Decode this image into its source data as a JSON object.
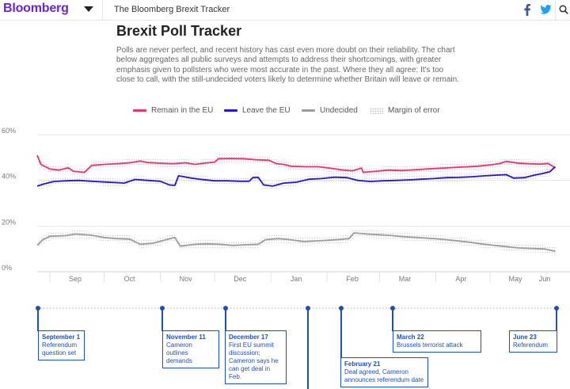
{
  "header": {
    "logo": "Bloomberg",
    "section": "The Bloomberg Brexit Tracker",
    "icons": [
      "facebook-icon",
      "twitter-icon",
      "search-icon"
    ]
  },
  "article": {
    "title": "Brexit Poll Tracker",
    "description": "Polls are never perfect, and recent history has cast even more doubt on their reliability. The chart below aggregates all public surveys and attempts to address their shortcomings, with greater emphasis given to pollsters who were most accurate in the past. Where they all agree: It's too close to call, with the still-undecided voters likely to determine whether Britain will leave or remain."
  },
  "legend": [
    {
      "label": "Remain in the EU",
      "color": "#e8336e"
    },
    {
      "label": "Leave the EU",
      "color": "#2a14c8"
    },
    {
      "label": "Undecided",
      "color": "#9b9b9b"
    },
    {
      "label": "Margin of error",
      "color": "#c8c8c8"
    }
  ],
  "chart_data": {
    "type": "line",
    "title": "Brexit Poll Tracker",
    "xlabel": "",
    "ylabel": "",
    "ylim": [
      0,
      60
    ],
    "y_ticks": [
      "0%",
      "20%",
      "40%",
      "60%"
    ],
    "x_ticks": [
      "Sep",
      "Oct",
      "Nov",
      "Dec",
      "Jan",
      "Feb",
      "Mar",
      "Apr",
      "May",
      "Jun"
    ],
    "x_start": "2015-08-25",
    "x_end": "2016-06-08",
    "grid": true,
    "legend_position": "top",
    "series": [
      {
        "name": "Remain in the EU",
        "color": "#e8336e",
        "points": [
          [
            "2015-08-25",
            51.0
          ],
          [
            "2015-08-27",
            47.0
          ],
          [
            "2015-09-01",
            45.0
          ],
          [
            "2015-09-06",
            44.5
          ],
          [
            "2015-09-11",
            45.5
          ],
          [
            "2015-09-14",
            44.0
          ],
          [
            "2015-09-20",
            43.5
          ],
          [
            "2015-09-24",
            46.5
          ],
          [
            "2015-10-01",
            47.0
          ],
          [
            "2015-10-08",
            47.3
          ],
          [
            "2015-10-15",
            47.7
          ],
          [
            "2015-10-21",
            48.5
          ],
          [
            "2015-10-25",
            47.8
          ],
          [
            "2015-11-01",
            47.5
          ],
          [
            "2015-11-08",
            47.3
          ],
          [
            "2015-11-15",
            47.7
          ],
          [
            "2015-11-20",
            47.0
          ],
          [
            "2015-11-25",
            47.5
          ],
          [
            "2015-12-01",
            48.0
          ],
          [
            "2015-12-03",
            49.5
          ],
          [
            "2015-12-10",
            49.6
          ],
          [
            "2015-12-17",
            49.5
          ],
          [
            "2015-12-24",
            49.0
          ],
          [
            "2015-12-31",
            48.8
          ],
          [
            "2016-01-04",
            47.3
          ],
          [
            "2016-01-08",
            47.0
          ],
          [
            "2016-01-12",
            46.2
          ],
          [
            "2016-01-20",
            46.0
          ],
          [
            "2016-01-27",
            46.0
          ],
          [
            "2016-02-03",
            45.3
          ],
          [
            "2016-02-10",
            44.5
          ],
          [
            "2016-02-15",
            44.2
          ],
          [
            "2016-02-20",
            45.4
          ],
          [
            "2016-02-21",
            43.5
          ],
          [
            "2016-02-28",
            44.0
          ],
          [
            "2016-03-06",
            44.5
          ],
          [
            "2016-03-13",
            44.3
          ],
          [
            "2016-03-20",
            44.6
          ],
          [
            "2016-03-27",
            45.0
          ],
          [
            "2016-04-03",
            45.3
          ],
          [
            "2016-04-10",
            45.6
          ],
          [
            "2016-04-17",
            45.9
          ],
          [
            "2016-04-24",
            46.2
          ],
          [
            "2016-05-01",
            46.8
          ],
          [
            "2016-05-06",
            47.3
          ],
          [
            "2016-05-10",
            48.3
          ],
          [
            "2016-05-16",
            47.6
          ],
          [
            "2016-05-22",
            47.3
          ],
          [
            "2016-05-28",
            47.1
          ],
          [
            "2016-06-02",
            47.4
          ],
          [
            "2016-06-06",
            45.5
          ]
        ]
      },
      {
        "name": "Leave the EU",
        "color": "#2a14c8",
        "points": [
          [
            "2015-08-25",
            37.5
          ],
          [
            "2015-08-29",
            38.5
          ],
          [
            "2015-09-03",
            39.5
          ],
          [
            "2015-09-10",
            39.8
          ],
          [
            "2015-09-17",
            40.0
          ],
          [
            "2015-09-24",
            39.6
          ],
          [
            "2015-10-01",
            39.3
          ],
          [
            "2015-10-08",
            39.0
          ],
          [
            "2015-10-12",
            38.8
          ],
          [
            "2015-10-18",
            40.4
          ],
          [
            "2015-10-25",
            40.0
          ],
          [
            "2015-11-01",
            39.6
          ],
          [
            "2015-11-06",
            38.0
          ],
          [
            "2015-11-09",
            37.8
          ],
          [
            "2015-11-11",
            42.0
          ],
          [
            "2015-11-18",
            41.0
          ],
          [
            "2015-11-25",
            40.3
          ],
          [
            "2015-12-01",
            39.8
          ],
          [
            "2015-12-08",
            39.8
          ],
          [
            "2015-12-15",
            39.6
          ],
          [
            "2015-12-20",
            39.6
          ],
          [
            "2015-12-22",
            41.2
          ],
          [
            "2015-12-25",
            41.3
          ],
          [
            "2015-12-28",
            38.0
          ],
          [
            "2016-01-02",
            37.5
          ],
          [
            "2016-01-08",
            38.8
          ],
          [
            "2016-01-15",
            39.2
          ],
          [
            "2016-01-22",
            40.5
          ],
          [
            "2016-01-29",
            40.8
          ],
          [
            "2016-02-05",
            41.4
          ],
          [
            "2016-02-12",
            41.2
          ],
          [
            "2016-02-18",
            40.0
          ],
          [
            "2016-02-25",
            39.5
          ],
          [
            "2016-03-03",
            39.8
          ],
          [
            "2016-03-10",
            40.0
          ],
          [
            "2016-03-17",
            40.2
          ],
          [
            "2016-03-24",
            40.5
          ],
          [
            "2016-03-31",
            40.8
          ],
          [
            "2016-04-07",
            41.2
          ],
          [
            "2016-04-14",
            41.3
          ],
          [
            "2016-04-21",
            41.6
          ],
          [
            "2016-04-28",
            42.0
          ],
          [
            "2016-05-05",
            42.3
          ],
          [
            "2016-05-10",
            42.5
          ],
          [
            "2016-05-14",
            41.0
          ],
          [
            "2016-05-20",
            41.2
          ],
          [
            "2016-05-25",
            42.2
          ],
          [
            "2016-05-30",
            43.0
          ],
          [
            "2016-06-03",
            43.8
          ],
          [
            "2016-06-06",
            46.0
          ]
        ]
      },
      {
        "name": "Undecided",
        "color": "#9b9b9b",
        "points": [
          [
            "2015-08-25",
            11.5
          ],
          [
            "2015-08-28",
            14.0
          ],
          [
            "2015-09-01",
            15.5
          ],
          [
            "2015-09-10",
            15.8
          ],
          [
            "2015-09-15",
            16.5
          ],
          [
            "2015-09-24",
            16.0
          ],
          [
            "2015-10-01",
            15.0
          ],
          [
            "2015-10-08",
            14.5
          ],
          [
            "2015-10-15",
            14.3
          ],
          [
            "2015-10-21",
            12.0
          ],
          [
            "2015-10-28",
            12.5
          ],
          [
            "2015-11-04",
            14.0
          ],
          [
            "2015-11-09",
            15.0
          ],
          [
            "2015-11-12",
            11.2
          ],
          [
            "2015-11-20",
            12.0
          ],
          [
            "2015-11-27",
            12.2
          ],
          [
            "2015-12-04",
            12.0
          ],
          [
            "2015-12-11",
            11.5
          ],
          [
            "2015-12-18",
            11.8
          ],
          [
            "2015-12-25",
            12.0
          ],
          [
            "2015-12-29",
            14.0
          ],
          [
            "2016-01-05",
            14.5
          ],
          [
            "2016-01-12",
            14.0
          ],
          [
            "2016-01-19",
            13.2
          ],
          [
            "2016-01-26",
            13.5
          ],
          [
            "2016-02-02",
            13.8
          ],
          [
            "2016-02-09",
            14.2
          ],
          [
            "2016-02-13",
            14.5
          ],
          [
            "2016-02-16",
            17.0
          ],
          [
            "2016-02-23",
            16.5
          ],
          [
            "2016-03-01",
            16.2
          ],
          [
            "2016-03-08",
            15.8
          ],
          [
            "2016-03-15",
            15.3
          ],
          [
            "2016-03-22",
            15.0
          ],
          [
            "2016-03-29",
            14.6
          ],
          [
            "2016-04-05",
            14.2
          ],
          [
            "2016-04-12",
            13.6
          ],
          [
            "2016-04-19",
            13.0
          ],
          [
            "2016-04-26",
            12.2
          ],
          [
            "2016-05-03",
            11.6
          ],
          [
            "2016-05-10",
            11.0
          ],
          [
            "2016-05-17",
            10.4
          ],
          [
            "2016-05-24",
            10.2
          ],
          [
            "2016-05-31",
            10.0
          ],
          [
            "2016-06-06",
            9.0
          ]
        ]
      }
    ]
  },
  "timeline": {
    "events": [
      {
        "date": "September 1",
        "text": [
          "Referendum",
          "question set"
        ]
      },
      {
        "date": "November 11",
        "text": [
          "Cameron outlines",
          "demands"
        ]
      },
      {
        "date": "December 17",
        "text": [
          "First EU summit",
          "discussion;",
          "Cameron says he",
          "can get deal in Feb."
        ]
      },
      {
        "date": "February 21",
        "text": [
          "Deal agreed, Cameron",
          "announces referendum date"
        ]
      },
      {
        "date": "March 22",
        "text": [
          "Brussels terrorist attack"
        ]
      },
      {
        "date": "June 23",
        "text": [
          "Referendum"
        ]
      }
    ]
  }
}
